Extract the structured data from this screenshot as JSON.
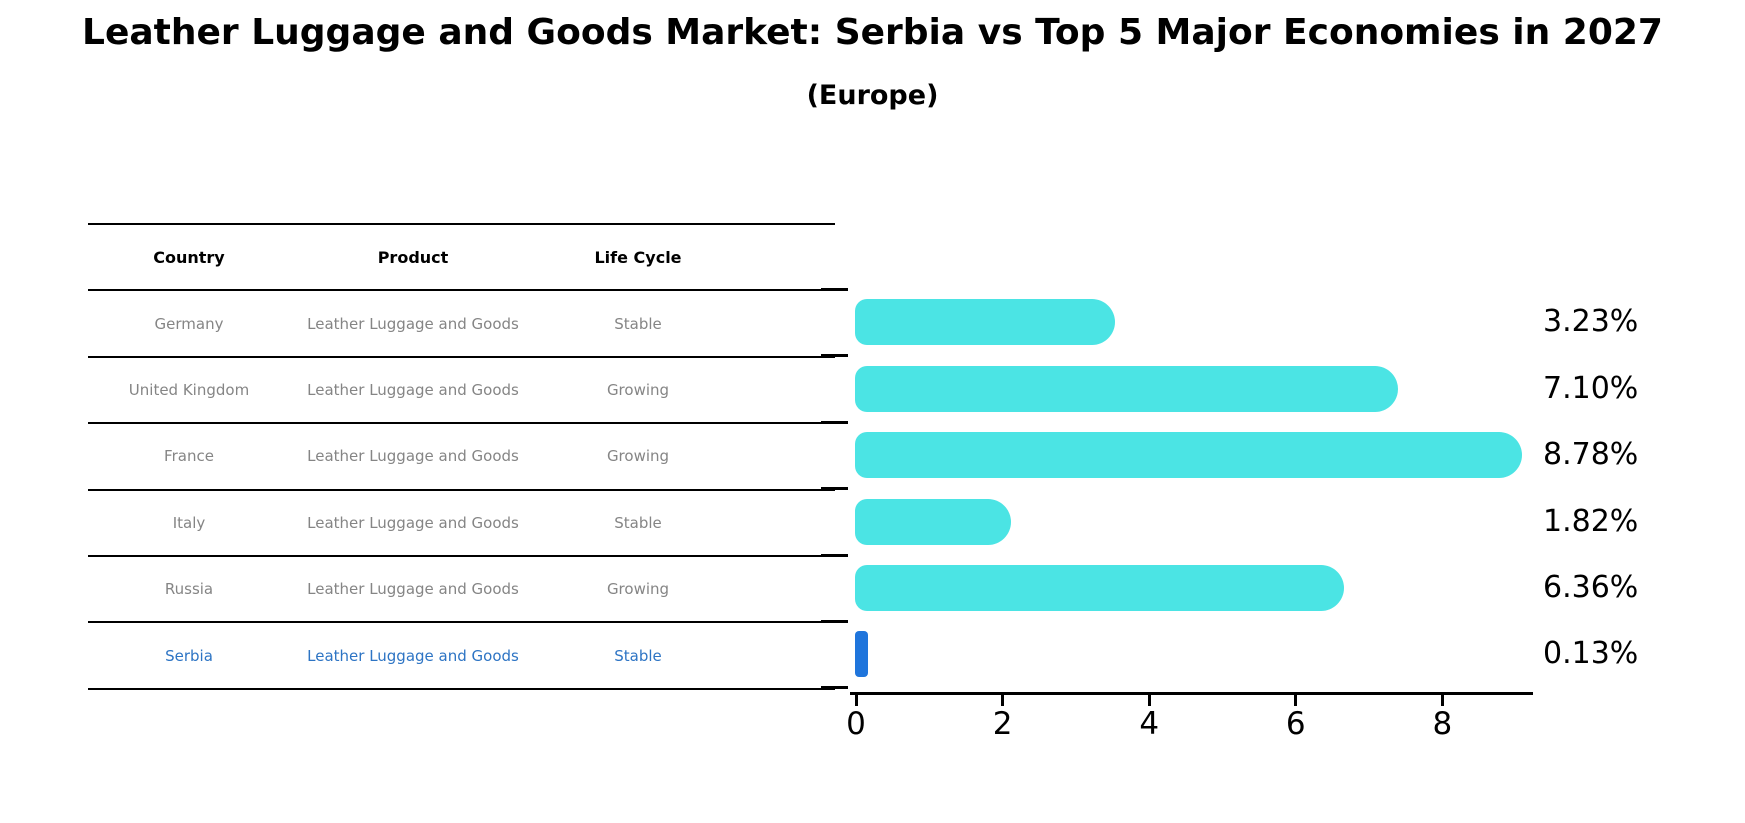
{
  "title": "Leather Luggage and Goods Market: Serbia vs Top 5 Major Economies in 2027",
  "subtitle": "(Europe)",
  "colors": {
    "bar_fill": "#4BE4E4",
    "highlight_bar_fill": "#1F75DC",
    "highlight_text": "#2D74C4",
    "table_text": "#858585",
    "axis_and_labels": "#000000"
  },
  "table": {
    "headers": [
      "Country",
      "Product",
      "Life Cycle"
    ],
    "rows": [
      {
        "country": "Germany",
        "product": "Leather Luggage and Goods",
        "life_cycle": "Stable",
        "highlight": false
      },
      {
        "country": "United Kingdom",
        "product": "Leather Luggage and Goods",
        "life_cycle": "Growing",
        "highlight": false
      },
      {
        "country": "France",
        "product": "Leather Luggage and Goods",
        "life_cycle": "Growing",
        "highlight": false
      },
      {
        "country": "Italy",
        "product": "Leather Luggage and Goods",
        "life_cycle": "Stable",
        "highlight": false
      },
      {
        "country": "Russia",
        "product": "Leather Luggage and Goods",
        "life_cycle": "Growing",
        "highlight": false
      },
      {
        "country": "Serbia",
        "product": "Leather Luggage and Goods",
        "life_cycle": "Stable",
        "highlight": true
      }
    ]
  },
  "chart_data": {
    "type": "bar",
    "orientation": "horizontal",
    "title": "Leather Luggage and Goods Market: Serbia vs Top 5 Major Economies in 2027",
    "subtitle": "(Europe)",
    "categories": [
      "Germany",
      "United Kingdom",
      "France",
      "Italy",
      "Russia",
      "Serbia"
    ],
    "values": [
      3.23,
      7.1,
      8.78,
      1.82,
      6.36,
      0.13
    ],
    "value_labels": [
      "3.23%",
      "7.10%",
      "8.78%",
      "1.82%",
      "6.36%",
      "0.13%"
    ],
    "highlight_index": 5,
    "x_ticks": [
      0,
      2,
      4,
      6,
      8
    ],
    "xlim": [
      0,
      9.2
    ],
    "grid": false,
    "legend": "none"
  }
}
